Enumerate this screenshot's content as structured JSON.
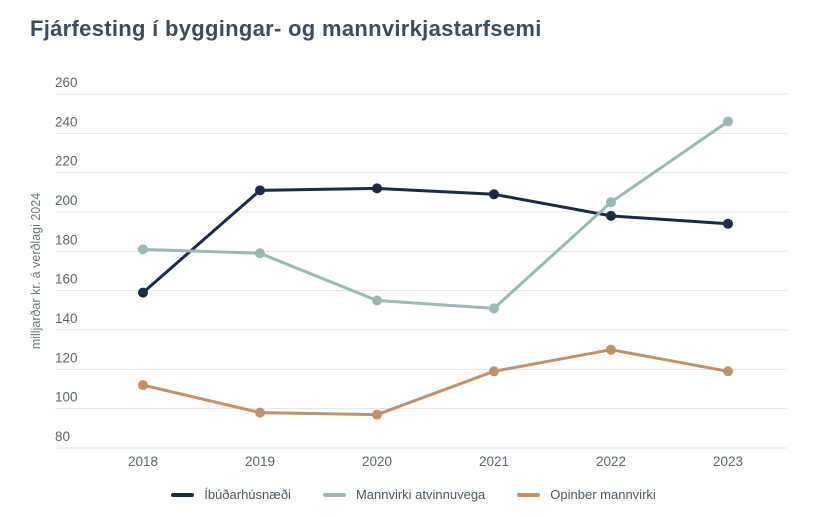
{
  "title": "Fjárfesting í byggingar- og mannvirkjastarfsemi",
  "chart_data": {
    "type": "line",
    "categories": [
      "2018",
      "2019",
      "2020",
      "2021",
      "2022",
      "2023"
    ],
    "series": [
      {
        "name": "Íbúðarhúsnæði",
        "color": "#1c2b42",
        "values": [
          159,
          211,
          212,
          209,
          198,
          194
        ]
      },
      {
        "name": "Mannvirki atvinnuvega",
        "color": "#9cb7b4",
        "values": [
          181,
          179,
          155,
          151,
          205,
          246
        ]
      },
      {
        "name": "Opinber mannvirki",
        "color": "#c0916a",
        "values": [
          112,
          98,
          97,
          119,
          130,
          119
        ]
      }
    ],
    "title": "Fjárfesting í byggingar- og mannvirkjastarfsemi",
    "xlabel": "",
    "ylabel": "milljarðar kr. á verðlagi 2024",
    "ylim": [
      80,
      260
    ],
    "ytick_step": 20,
    "yticks": [
      260,
      240,
      220,
      200,
      180,
      160,
      140,
      120,
      100,
      80
    ],
    "grid": true,
    "legend_position": "bottom",
    "marker": "circle"
  },
  "colors": {
    "title_text": "#3e4c59",
    "axis_tick_text": "#5a646e",
    "axis_title_text": "#6d7781",
    "gridline": "#e4e5e6",
    "legend_text": "#4b5661",
    "background": "#ffffff"
  }
}
